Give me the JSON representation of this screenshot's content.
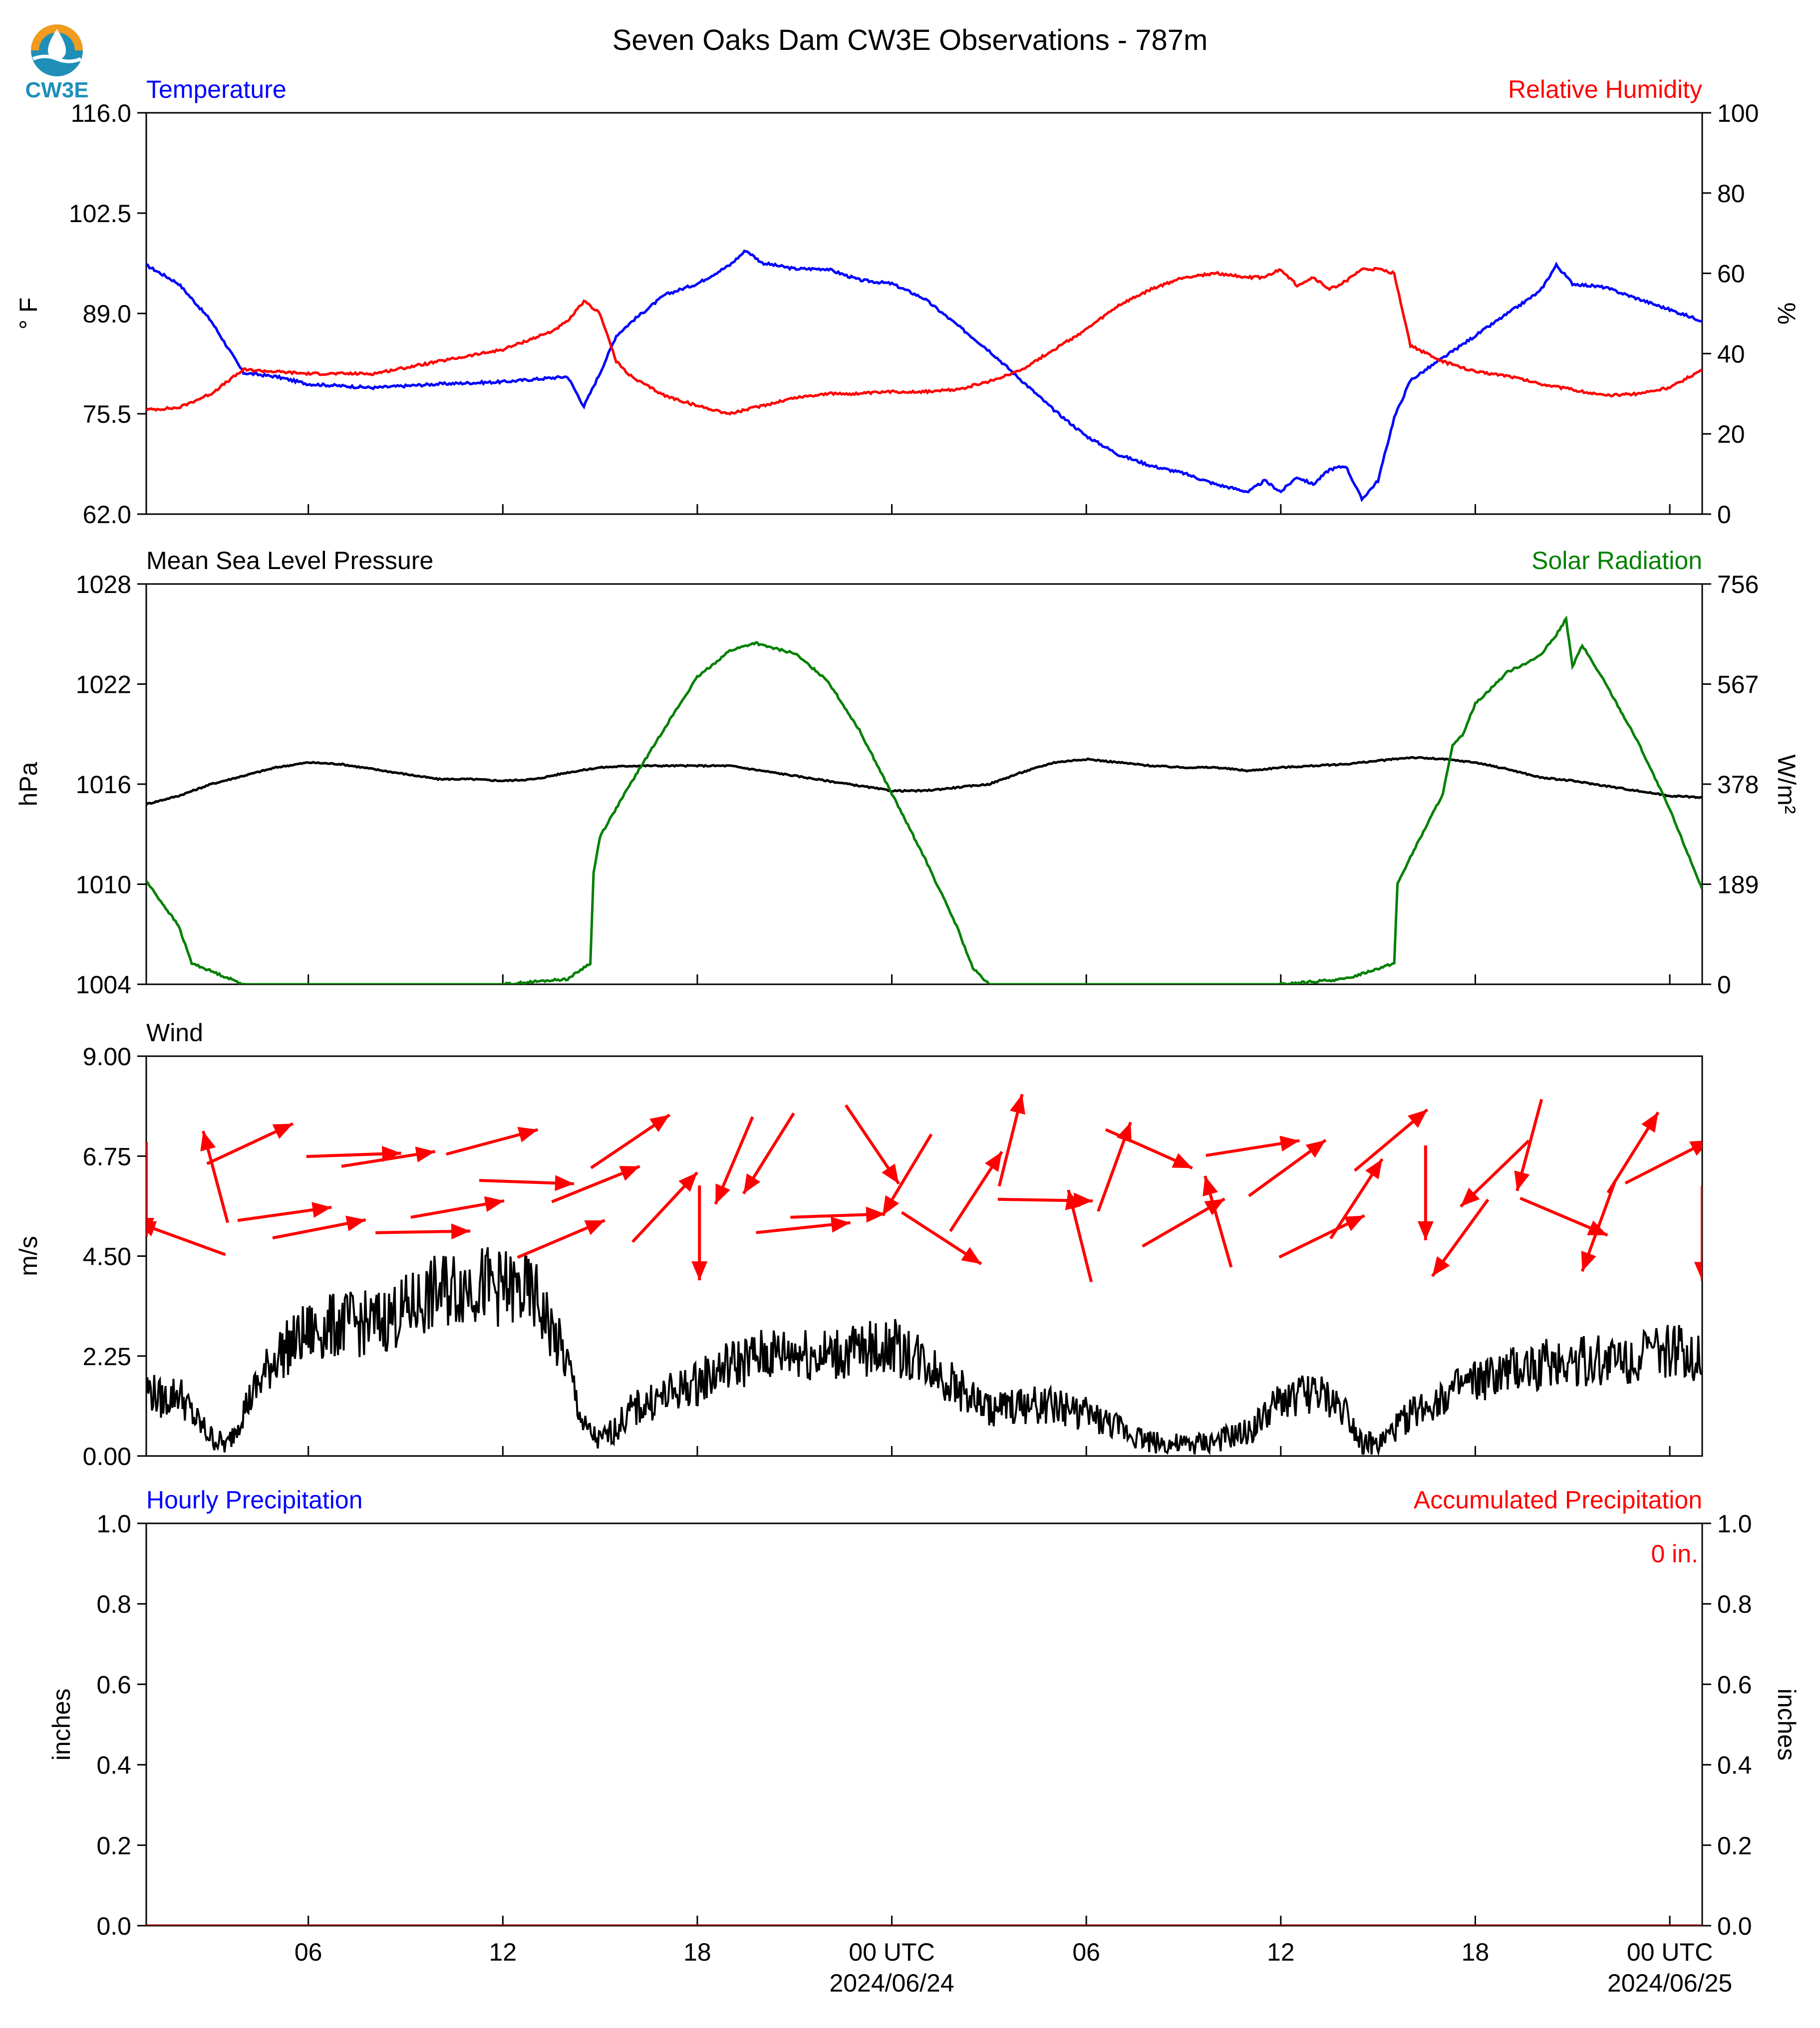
{
  "title": "Seven Oaks Dam CW3E Observations - 787m",
  "logo": {
    "text": "CW3E",
    "icon": "water-drop-logo-icon",
    "colors": {
      "ring": "#f29b1d",
      "wave": "#1f8fb8",
      "text": "#1f8fb8"
    }
  },
  "x_axis": {
    "hour_start": 1,
    "hour_end": 49,
    "tick_hours": [
      6,
      12,
      18,
      24,
      30,
      36,
      42,
      48
    ],
    "tick_labels": [
      "06",
      "12",
      "18",
      "00 UTC",
      "06",
      "12",
      "18",
      "00 UTC"
    ],
    "date_labels": [
      "2024/06/24",
      "",
      "",
      "",
      "2024/06/25"
    ]
  },
  "chart_data": [
    {
      "type": "line",
      "panel": "temperature-humidity",
      "left_title": "Temperature",
      "right_title": "Relative Humidity",
      "left_ylabel": "° F",
      "right_ylabel": "%",
      "left_ylim": [
        62.0,
        116.0
      ],
      "right_ylim": [
        0,
        100
      ],
      "left_ticks": [
        "62.0",
        "75.5",
        "89.0",
        "102.5",
        "116.0"
      ],
      "right_ticks": [
        "0",
        "20",
        "40",
        "60",
        "80",
        "100"
      ],
      "colors": {
        "left": "#0000ff",
        "right": "#ff0000"
      },
      "series": [
        {
          "axis": "left",
          "x": [
            1,
            2,
            3,
            4,
            5,
            6,
            8,
            10,
            12,
            14,
            14.5,
            15,
            15.5,
            16,
            17,
            18,
            19,
            19.5,
            20,
            21,
            22,
            23,
            24,
            25,
            26,
            27,
            28,
            29,
            30,
            31,
            32,
            33,
            34,
            35,
            35.5,
            36,
            36.5,
            37,
            37.5,
            38,
            38.5,
            39,
            39.5,
            40,
            41,
            42,
            43,
            44,
            44.5,
            45,
            46,
            47,
            48,
            49
          ],
          "values": [
            95.5,
            93,
            88,
            81,
            80.5,
            79.5,
            79,
            79.5,
            79.8,
            80.5,
            76.5,
            81,
            86,
            88,
            91.5,
            93,
            95.5,
            97.5,
            95.8,
            95,
            95,
            93.5,
            93,
            91,
            87.5,
            84,
            80,
            76,
            72.5,
            70,
            68.5,
            67.5,
            66,
            65,
            66.5,
            65,
            67,
            66,
            68,
            68.5,
            64,
            66.5,
            75,
            80,
            83,
            86,
            89,
            92,
            95.5,
            93,
            92.5,
            91,
            89.5,
            88
          ]
        },
        {
          "axis": "right",
          "x": [
            1,
            2,
            3,
            4,
            5,
            6,
            8,
            10,
            12,
            13.5,
            14,
            14.5,
            15,
            15.5,
            16,
            17,
            18,
            19,
            20,
            21,
            22,
            23,
            24,
            25,
            26,
            27,
            28,
            29,
            30,
            31,
            32,
            33,
            34,
            35,
            35.5,
            36,
            36.5,
            37,
            37.5,
            38,
            38.5,
            39,
            39.5,
            40,
            41,
            42,
            43,
            44,
            45,
            46,
            47,
            48,
            49
          ],
          "values": [
            26,
            26.5,
            30,
            36,
            35.5,
            35,
            35,
            38,
            41,
            45.5,
            48,
            53,
            50,
            38,
            34,
            29.5,
            27,
            25,
            27,
            29,
            30,
            30,
            30.5,
            30.5,
            31,
            33,
            36,
            41,
            46,
            52,
            56,
            59,
            60,
            59,
            59,
            61,
            57,
            59,
            56,
            58,
            61,
            61,
            60,
            42,
            38,
            35.5,
            34.5,
            32.5,
            31,
            29.5,
            30,
            31.5,
            36
          ]
        }
      ]
    },
    {
      "type": "line",
      "panel": "pressure-solar",
      "left_title": "Mean Sea Level Pressure",
      "right_title": "Solar Radiation",
      "left_ylabel": "hPa",
      "right_ylabel": "W/m²",
      "left_ylim": [
        1004,
        1028
      ],
      "right_ylim": [
        0,
        756
      ],
      "left_ticks": [
        "1004",
        "1010",
        "1016",
        "1022",
        "1028"
      ],
      "right_ticks": [
        "0",
        "189",
        "378",
        "567",
        "756"
      ],
      "colors": {
        "left": "#000000",
        "right": "#008000"
      },
      "series": [
        {
          "axis": "left",
          "x": [
            1,
            2,
            3,
            4,
            5,
            6,
            7,
            8,
            9,
            10,
            11,
            12,
            13,
            14,
            15,
            16,
            17,
            18,
            19,
            20,
            21,
            22,
            23,
            24,
            25,
            26,
            27,
            28,
            29,
            30,
            31,
            32,
            33,
            34,
            35,
            36,
            37,
            38,
            39,
            40,
            41,
            42,
            43,
            44,
            45,
            46,
            47,
            48,
            49
          ],
          "values": [
            1014.8,
            1015.3,
            1016,
            1016.5,
            1017,
            1017.3,
            1017.2,
            1016.9,
            1016.6,
            1016.3,
            1016.3,
            1016.2,
            1016.3,
            1016.7,
            1017,
            1017.1,
            1017.1,
            1017.1,
            1017.1,
            1016.8,
            1016.5,
            1016.2,
            1015.9,
            1015.6,
            1015.6,
            1015.8,
            1016,
            1016.7,
            1017.3,
            1017.5,
            1017.3,
            1017.1,
            1017,
            1017,
            1016.8,
            1017,
            1017.1,
            1017.2,
            1017.4,
            1017.6,
            1017.5,
            1017.3,
            1016.9,
            1016.4,
            1016.2,
            1015.9,
            1015.6,
            1015.3,
            1015.2
          ]
        },
        {
          "axis": "right",
          "x": [
            1,
            2,
            2.4,
            4,
            8,
            12,
            14,
            14.7,
            14.8,
            15,
            16,
            17,
            18,
            19,
            19.8,
            20,
            21,
            22,
            23,
            24,
            25,
            26,
            26.5,
            27,
            30,
            36,
            38,
            39.5,
            39.6,
            40,
            40.5,
            41,
            41.3,
            41.6,
            42,
            43,
            44,
            44.5,
            44.8,
            45,
            45.3,
            46,
            47,
            48,
            49
          ],
          "values": [
            195,
            110,
            40,
            0,
            0,
            0,
            10,
            40,
            210,
            280,
            385,
            485,
            580,
            630,
            645,
            640,
            625,
            575,
            480,
            360,
            240,
            110,
            30,
            0,
            0,
            0,
            10,
            40,
            190,
            240,
            300,
            360,
            450,
            470,
            530,
            590,
            620,
            660,
            690,
            600,
            640,
            570,
            460,
            330,
            180
          ]
        }
      ]
    },
    {
      "type": "line",
      "panel": "wind",
      "left_title": "Wind",
      "left_ylabel": "m/s",
      "left_ylim": [
        0,
        9
      ],
      "left_ticks": [
        "0.00",
        "2.25",
        "4.50",
        "6.75",
        "9.00"
      ],
      "colors": {
        "line": "#000000",
        "vectors": "#ff0000"
      },
      "series": [
        {
          "name": "",
          "x": [
            1,
            1.5,
            2,
            2.5,
            3,
            3.5,
            4,
            5,
            6,
            7,
            8,
            9,
            10,
            11,
            12,
            13,
            14,
            14.5,
            15,
            15.5,
            16,
            17,
            18,
            19,
            20,
            21,
            22,
            23,
            24,
            25,
            26,
            27,
            28,
            29,
            30,
            31,
            32,
            33,
            34,
            35,
            36,
            37,
            38,
            38.5,
            39,
            40,
            41,
            42,
            43,
            44,
            45,
            46,
            47,
            48,
            49
          ],
          "values": [
            1.5,
            1.2,
            1.4,
            0.8,
            0.4,
            0.2,
            1.0,
            2.2,
            2.7,
            2.9,
            2.9,
            3.2,
            3.6,
            3.8,
            3.7,
            3.5,
            2.0,
            0.6,
            0.3,
            0.6,
            1.0,
            1.3,
            1.6,
            2.0,
            2.2,
            2.3,
            2.2,
            2.3,
            2.4,
            2.1,
            1.5,
            1.0,
            1.1,
            1.1,
            0.9,
            0.6,
            0.3,
            0.2,
            0.3,
            0.5,
            1.2,
            1.4,
            1.0,
            0.3,
            0.2,
            0.9,
            1.3,
            1.6,
            1.8,
            2.0,
            2.1,
            2.1,
            2.2,
            2.3,
            2.2
          ]
        }
      ],
      "vector_dir_deg": [
        0,
        110,
        165,
        245,
        262,
        259,
        268,
        261,
        269,
        260,
        255,
        272,
        247,
        248,
        236,
        223,
        0,
        23,
        32,
        264,
        268,
        326,
        31,
        303,
        213,
        194,
        271,
        166,
        200,
        294,
        240,
        164,
        261,
        234,
        244,
        213,
        230,
        0,
        36,
        46,
        15,
        293,
        20,
        212,
        243,
        0
      ]
    },
    {
      "type": "line",
      "panel": "precipitation",
      "left_title": "Hourly Precipitation",
      "right_title": "Accumulated Precipitation",
      "left_ylabel": "inches",
      "right_ylabel": "inches",
      "left_ylim": [
        0.0,
        1.0
      ],
      "right_ylim": [
        0.0,
        1.0
      ],
      "left_ticks": [
        "0.0",
        "0.2",
        "0.4",
        "0.6",
        "0.8",
        "1.0"
      ],
      "right_ticks": [
        "0.0",
        "0.2",
        "0.4",
        "0.6",
        "0.8",
        "1.0"
      ],
      "accumulated_label": "0 in.",
      "colors": {
        "left": "#0000ff",
        "right": "#ff0000"
      },
      "series": [
        {
          "axis": "right",
          "x": [
            1,
            49
          ],
          "values": [
            0,
            0
          ]
        }
      ]
    }
  ]
}
